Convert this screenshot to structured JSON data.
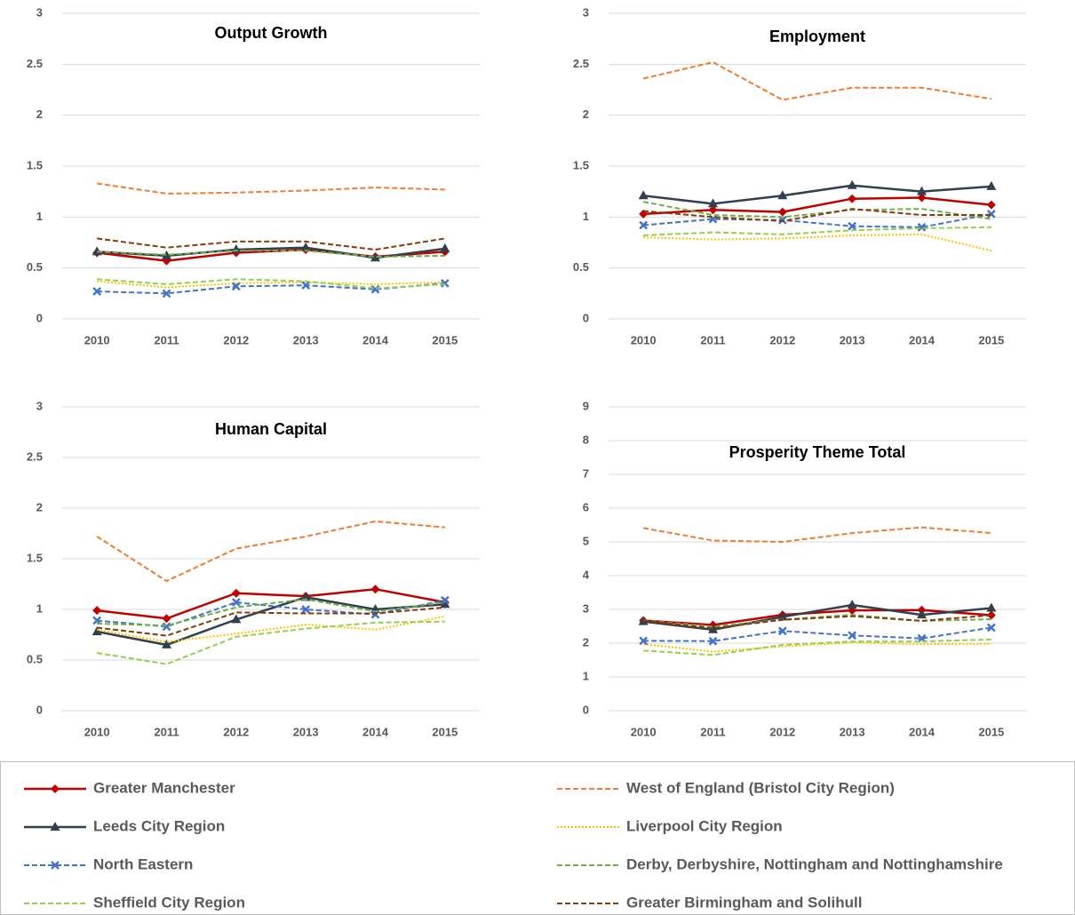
{
  "legend": [
    {
      "name": "Greater Manchester",
      "color": "#c00000",
      "dash": "none",
      "marker": "diamond"
    },
    {
      "name": "West of England (Bristol City Region)",
      "color": "#ed7d31",
      "dash": "6 3",
      "marker": "none"
    },
    {
      "name": "Leeds City Region",
      "color": "#323f4f",
      "dash": "none",
      "marker": "triangle"
    },
    {
      "name": "Liverpool City Region",
      "color": "#ffc000",
      "dash": "2 2",
      "marker": "none"
    },
    {
      "name": "North Eastern",
      "color": "#4472c4",
      "dash": "6 3",
      "marker": "x"
    },
    {
      "name": "Derby, Derbyshire, Nottingham and Nottinghamshire",
      "color": "#70ad47",
      "dash": "6 3",
      "marker": "none"
    },
    {
      "name": "Sheffield City Region",
      "color": "#92d050",
      "dash": "6 3",
      "marker": "none"
    },
    {
      "name": "Greater Birmingham and Solihull",
      "color": "#843c0c",
      "dash": "6 3",
      "marker": "none"
    }
  ],
  "chart_data": [
    {
      "type": "line",
      "title": "Output Growth",
      "categories": [
        "2010",
        "2011",
        "2012",
        "2013",
        "2014",
        "2015"
      ],
      "ylim": [
        0,
        3
      ],
      "yticks": [
        0,
        0.5,
        1,
        1.5,
        2,
        2.5,
        3
      ],
      "grid": true,
      "series": [
        {
          "values": [
            0.65,
            0.57,
            0.65,
            0.68,
            0.61,
            0.66
          ]
        },
        {
          "values": [
            1.33,
            1.23,
            1.24,
            1.26,
            1.29,
            1.27
          ]
        },
        {
          "values": [
            0.66,
            0.62,
            0.68,
            0.7,
            0.6,
            0.69
          ]
        },
        {
          "values": [
            0.37,
            0.31,
            0.35,
            0.36,
            0.34,
            0.36
          ]
        },
        {
          "values": [
            0.27,
            0.25,
            0.32,
            0.33,
            0.29,
            0.35
          ]
        },
        {
          "values": [
            0.66,
            0.63,
            0.67,
            0.67,
            0.61,
            0.62
          ]
        },
        {
          "values": [
            0.39,
            0.34,
            0.39,
            0.37,
            0.3,
            0.34
          ]
        },
        {
          "values": [
            0.79,
            0.7,
            0.76,
            0.76,
            0.68,
            0.79
          ]
        }
      ]
    },
    {
      "type": "line",
      "title": "Employment",
      "categories": [
        "2010",
        "2011",
        "2012",
        "2013",
        "2014",
        "2015"
      ],
      "ylim": [
        0,
        3
      ],
      "yticks": [
        0,
        0.5,
        1,
        1.5,
        2,
        2.5,
        3
      ],
      "grid": true,
      "series": [
        {
          "values": [
            1.03,
            1.07,
            1.05,
            1.18,
            1.19,
            1.12
          ]
        },
        {
          "values": [
            2.36,
            2.52,
            2.15,
            2.27,
            2.27,
            2.16
          ]
        },
        {
          "values": [
            1.21,
            1.13,
            1.21,
            1.31,
            1.25,
            1.3
          ]
        },
        {
          "values": [
            0.8,
            0.78,
            0.79,
            0.82,
            0.83,
            0.67
          ]
        },
        {
          "values": [
            0.92,
            0.98,
            0.97,
            0.91,
            0.9,
            1.03
          ]
        },
        {
          "values": [
            1.15,
            1.02,
            1.0,
            1.07,
            1.08,
            0.98
          ]
        },
        {
          "values": [
            0.82,
            0.85,
            0.83,
            0.87,
            0.89,
            0.9
          ]
        },
        {
          "values": [
            1.06,
            1.0,
            0.96,
            1.08,
            1.02,
            1.02
          ]
        }
      ]
    },
    {
      "type": "line",
      "title": "Human Capital",
      "categories": [
        "2010",
        "2011",
        "2012",
        "2013",
        "2014",
        "2015"
      ],
      "ylim": [
        0,
        3
      ],
      "yticks": [
        0,
        0.5,
        1,
        1.5,
        2,
        2.5,
        3
      ],
      "grid": true,
      "series": [
        {
          "values": [
            0.99,
            0.91,
            1.16,
            1.13,
            1.2,
            1.07
          ]
        },
        {
          "values": [
            1.72,
            1.28,
            1.6,
            1.72,
            1.87,
            1.81
          ]
        },
        {
          "values": [
            0.78,
            0.65,
            0.9,
            1.12,
            1.0,
            1.05
          ]
        },
        {
          "values": [
            0.8,
            0.68,
            0.76,
            0.85,
            0.8,
            0.93
          ]
        },
        {
          "values": [
            0.89,
            0.83,
            1.07,
            1.0,
            0.95,
            1.09
          ]
        },
        {
          "values": [
            0.86,
            0.84,
            1.02,
            1.1,
            0.98,
            1.07
          ]
        },
        {
          "values": [
            0.57,
            0.46,
            0.73,
            0.81,
            0.87,
            0.88
          ]
        },
        {
          "values": [
            0.82,
            0.74,
            0.97,
            0.96,
            0.96,
            1.02
          ]
        }
      ]
    },
    {
      "type": "line",
      "title": "Prosperity Theme Total",
      "categories": [
        "2010",
        "2011",
        "2012",
        "2013",
        "2014",
        "2015"
      ],
      "ylim": [
        0,
        9
      ],
      "yticks": [
        0,
        1,
        2,
        3,
        4,
        5,
        6,
        7,
        8,
        9
      ],
      "grid": true,
      "series": [
        {
          "values": [
            2.67,
            2.54,
            2.84,
            2.97,
            2.98,
            2.83
          ]
        },
        {
          "values": [
            5.41,
            5.04,
            5.0,
            5.26,
            5.43,
            5.26
          ]
        },
        {
          "values": [
            2.64,
            2.4,
            2.78,
            3.13,
            2.84,
            3.04
          ]
        },
        {
          "values": [
            1.97,
            1.75,
            1.9,
            2.02,
            1.97,
            1.98
          ]
        },
        {
          "values": [
            2.07,
            2.06,
            2.36,
            2.23,
            2.14,
            2.46
          ]
        },
        {
          "values": [
            2.68,
            2.49,
            2.7,
            2.84,
            2.66,
            2.71
          ]
        },
        {
          "values": [
            1.78,
            1.65,
            1.95,
            2.05,
            2.05,
            2.11
          ]
        },
        {
          "values": [
            2.67,
            2.44,
            2.69,
            2.8,
            2.66,
            2.83
          ]
        }
      ]
    }
  ]
}
